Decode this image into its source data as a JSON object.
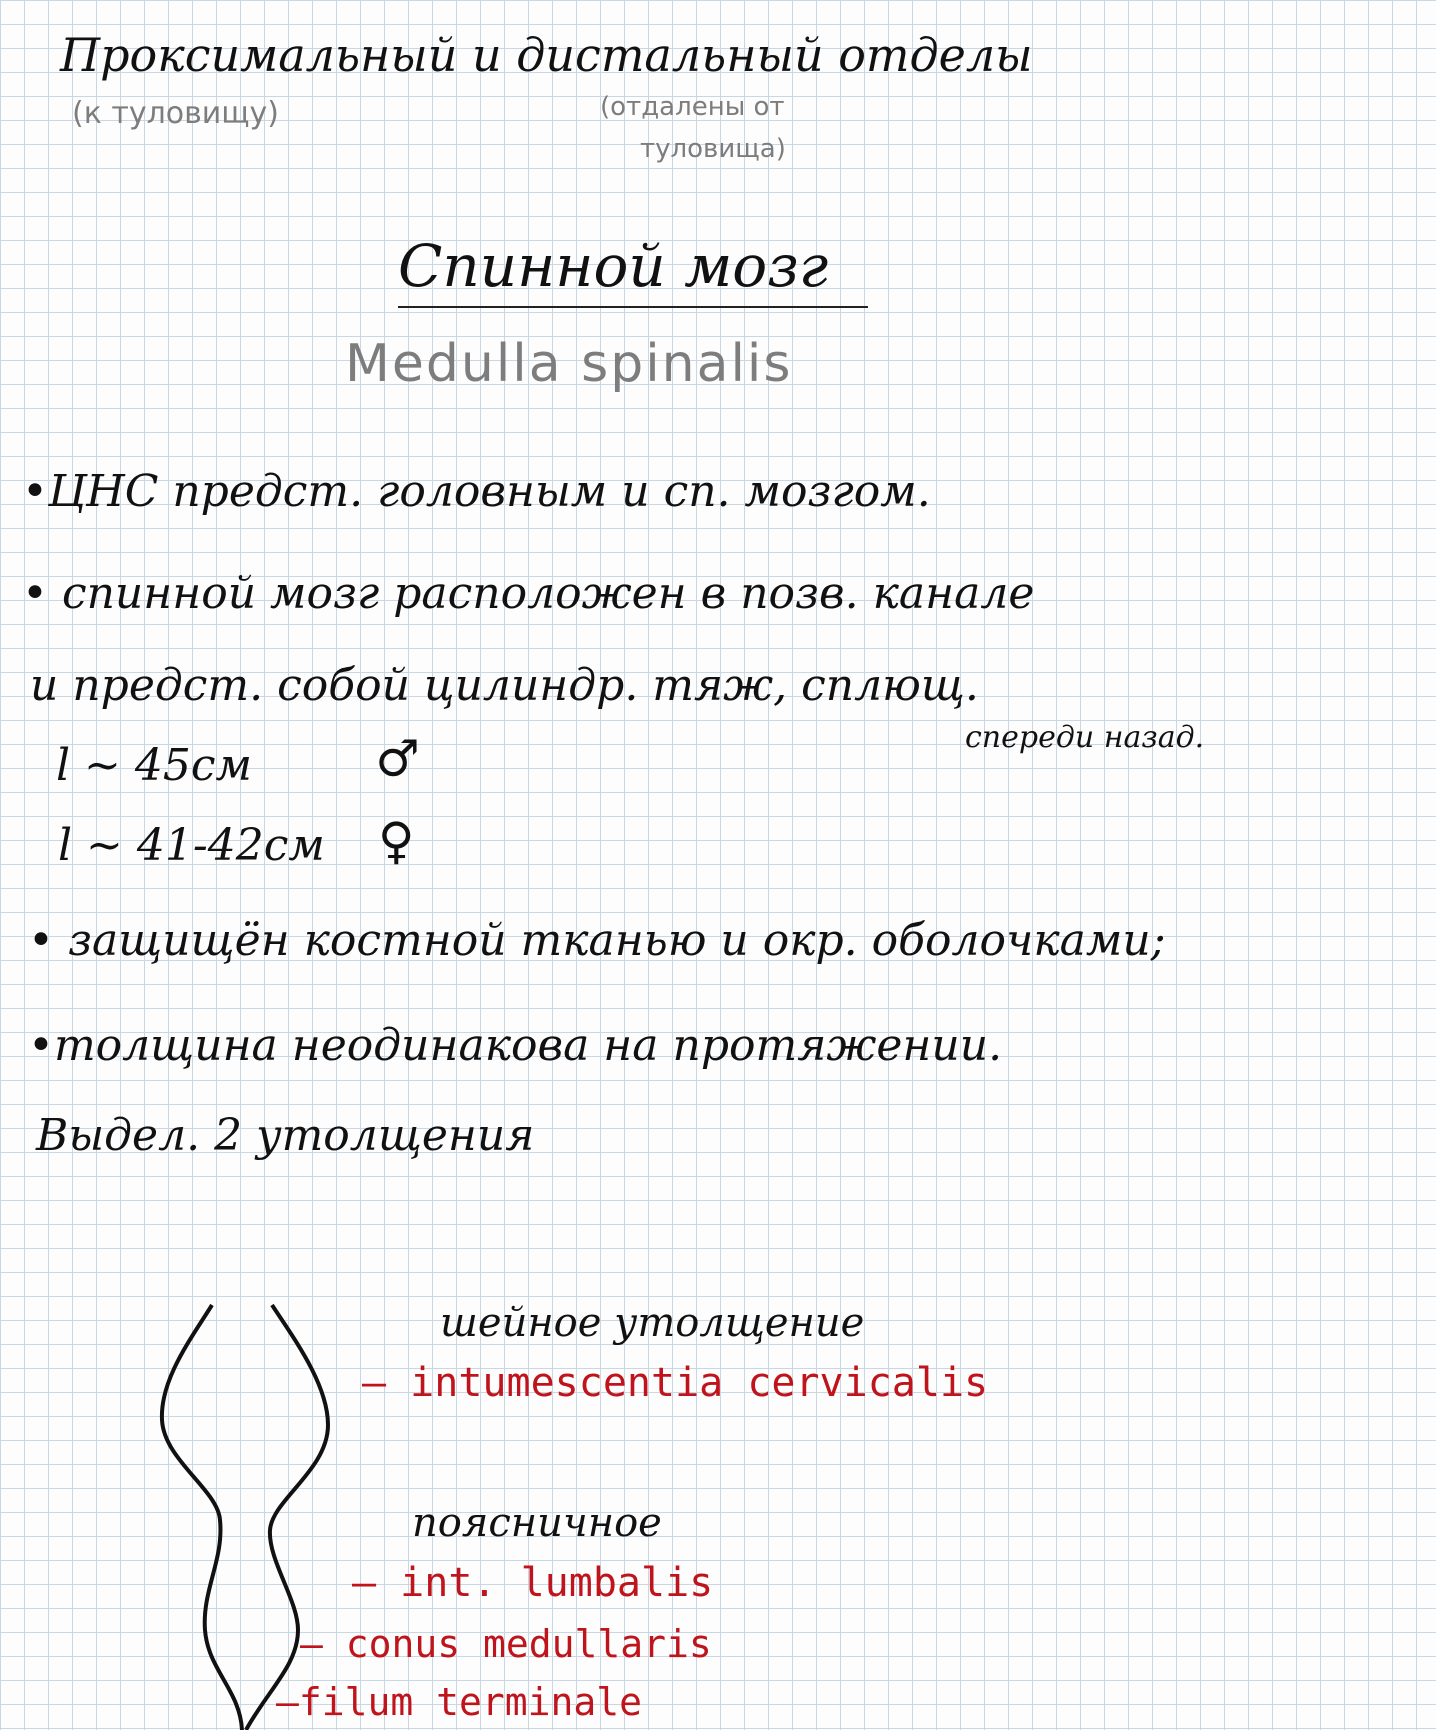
{
  "header": {
    "line": "Проксимальный и дистальный отделы",
    "proximal_note": "(к туловищу)",
    "distal_note_1": "(отдалены от",
    "distal_note_2": "туловища)"
  },
  "title": {
    "ru": "Спинной мозг",
    "latin": "Medulla spinalis"
  },
  "bullets": {
    "b1": "•ЦНС предст. головным и сп. мозгом.",
    "b2": "• спинной мозг расположен в позв. канале",
    "b3": "и предст. собой цилиндр. тяж, сплющ.",
    "b3_note": "спереди назад.",
    "len_male": "l ~ 45см",
    "len_male_sym": "♂",
    "len_female": "l ~ 41-42см",
    "len_female_sym": "♀",
    "b4": "• защищён костной тканью и окр. оболочками;",
    "b5": "•толщина неодинакова на протяжении.",
    "b6": "Выдел. 2 утолщения"
  },
  "diagram": {
    "cervical_ru": "шейное утолщение",
    "cervical_lat": "– intumescentia cervicalis",
    "lumbar_ru": "поясничное",
    "lumbar_lat": "– int. lumbalis",
    "conus": "— conus medullaris",
    "filum": "–filum terminale"
  }
}
